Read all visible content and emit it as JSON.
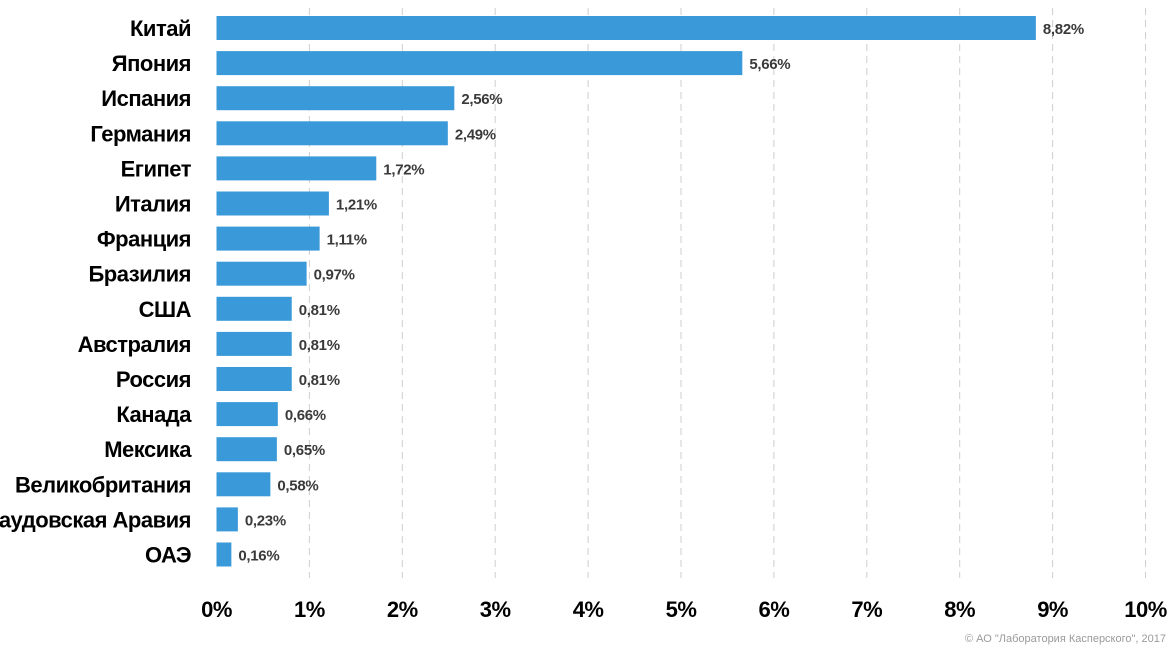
{
  "chart_data": {
    "type": "bar",
    "orientation": "horizontal",
    "categories": [
      "Китай",
      "Япония",
      "Испания",
      "Германия",
      "Египет",
      "Италия",
      "Франция",
      "Бразилия",
      "США",
      "Австралия",
      "Россия",
      "Канада",
      "Мексика",
      "Великобритания",
      "Саудовская Аравия",
      "ОАЭ"
    ],
    "values": [
      8.82,
      5.66,
      2.56,
      2.49,
      1.72,
      1.21,
      1.11,
      0.97,
      0.81,
      0.81,
      0.81,
      0.66,
      0.65,
      0.58,
      0.23,
      0.16
    ],
    "value_labels": [
      "8,82%",
      "5,66%",
      "2,56%",
      "2,49%",
      "1,72%",
      "1,21%",
      "1,11%",
      "0,97%",
      "0,81%",
      "0,81%",
      "0,81%",
      "0,66%",
      "0,65%",
      "0,58%",
      "0,23%",
      "0,16%"
    ],
    "xlim": [
      0,
      10
    ],
    "x_ticks": [
      "0%",
      "1%",
      "2%",
      "3%",
      "4%",
      "5%",
      "6%",
      "7%",
      "8%",
      "9%",
      "10%"
    ],
    "grid": "vertical dashed",
    "bar_color": "#3a9ad9",
    "title": "",
    "xlabel": "",
    "ylabel": ""
  },
  "footer": {
    "copyright": "© АО \"Лаборатория Касперского\", 2017"
  }
}
